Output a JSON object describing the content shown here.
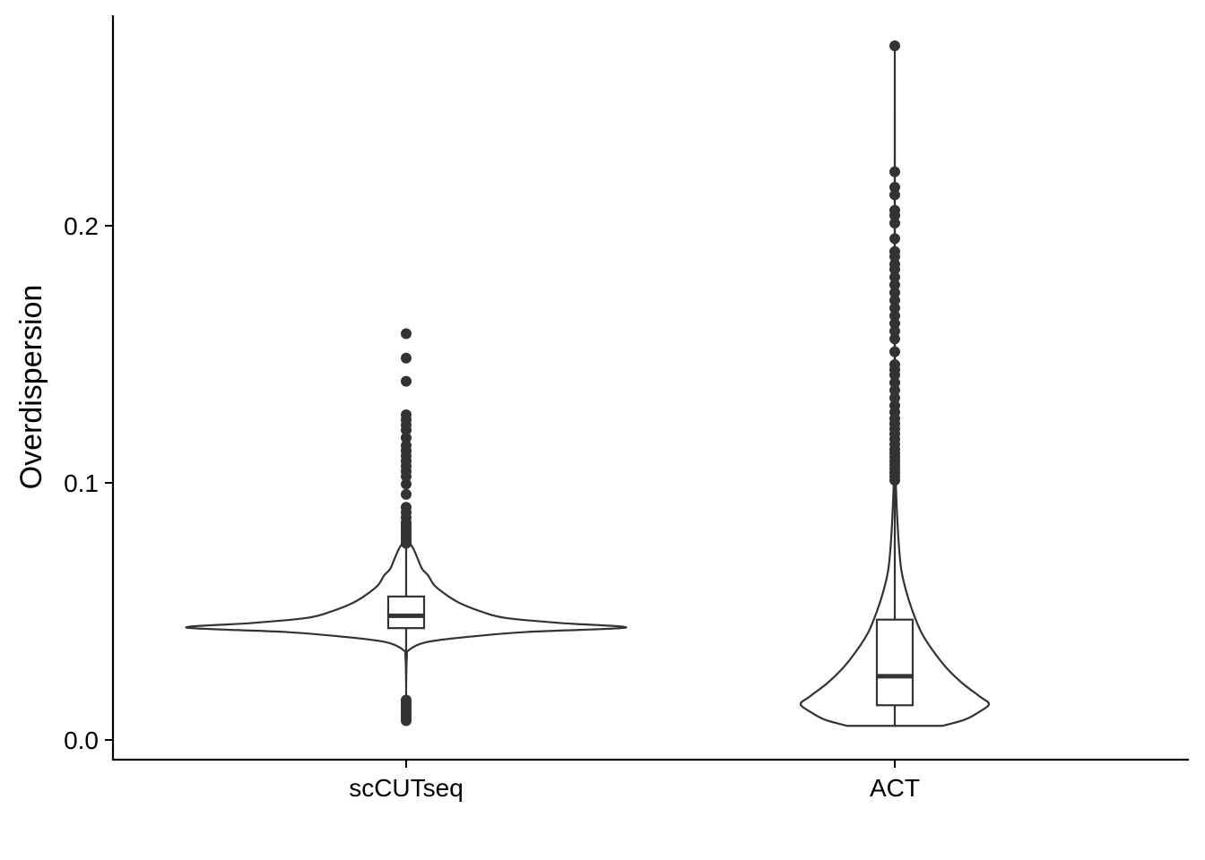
{
  "chart_data": {
    "type": "violin",
    "title": "",
    "xlabel": "",
    "ylabel": "Overdispersion",
    "ylim": [
      -0.0075,
      0.282
    ],
    "yticks": [
      0.0,
      0.1,
      0.2
    ],
    "ytick_labels": [
      "0.0",
      "0.1",
      "0.2"
    ],
    "grid": false,
    "legend": "none",
    "colors": {
      "stroke": "#333333",
      "fill": "#ffffff",
      "axis": "#000000"
    },
    "categories": [
      "scCUTseq",
      "ACT"
    ],
    "groups": [
      {
        "name": "scCUTseq",
        "box": {
          "q1": 0.0435,
          "median": 0.0483,
          "q3": 0.0558,
          "whisker_low": 0.033,
          "whisker_high": 0.0763
        },
        "violin": [
          [
            0.0075,
            0.0
          ],
          [
            0.02,
            0.0
          ],
          [
            0.032,
            0.003
          ],
          [
            0.035,
            0.013
          ],
          [
            0.038,
            0.09
          ],
          [
            0.04,
            0.27
          ],
          [
            0.042,
            0.55
          ],
          [
            0.0437,
            1.0
          ],
          [
            0.0455,
            0.7
          ],
          [
            0.0475,
            0.45
          ],
          [
            0.05,
            0.34
          ],
          [
            0.053,
            0.25
          ],
          [
            0.056,
            0.19
          ],
          [
            0.06,
            0.13
          ],
          [
            0.064,
            0.1
          ],
          [
            0.0665,
            0.073
          ],
          [
            0.07,
            0.055
          ],
          [
            0.074,
            0.035
          ],
          [
            0.078,
            0.008
          ],
          [
            0.08,
            0.0
          ]
        ],
        "outliers": [
          0.0075,
          0.0085,
          0.0095,
          0.0105,
          0.0115,
          0.0125,
          0.0135,
          0.0145,
          0.0155,
          0.0765,
          0.0775,
          0.0785,
          0.0795,
          0.0805,
          0.0815,
          0.0825,
          0.0835,
          0.0845,
          0.0865,
          0.0885,
          0.0905,
          0.0955,
          0.0995,
          0.1025,
          0.1045,
          0.1065,
          0.1085,
          0.1105,
          0.1125,
          0.1145,
          0.1175,
          0.1205,
          0.1225,
          0.1245,
          0.1265,
          0.1395,
          0.1485,
          0.158
        ]
      },
      {
        "name": "ACT",
        "box": {
          "q1": 0.0135,
          "median": 0.0248,
          "q3": 0.0468,
          "whisker_low": 0.0055,
          "whisker_high": 0.1
        },
        "violin": [
          [
            0.0055,
            0.51
          ],
          [
            0.008,
            0.75
          ],
          [
            0.011,
            0.9
          ],
          [
            0.014,
            1.0
          ],
          [
            0.017,
            0.9
          ],
          [
            0.022,
            0.72
          ],
          [
            0.028,
            0.55
          ],
          [
            0.035,
            0.4
          ],
          [
            0.042,
            0.28
          ],
          [
            0.05,
            0.19
          ],
          [
            0.058,
            0.12
          ],
          [
            0.066,
            0.07
          ],
          [
            0.075,
            0.045
          ],
          [
            0.085,
            0.028
          ],
          [
            0.095,
            0.016
          ],
          [
            0.105,
            0.008
          ],
          [
            0.12,
            0.004
          ],
          [
            0.15,
            0.002
          ],
          [
            0.2,
            0.001
          ],
          [
            0.27,
            0.0
          ]
        ],
        "outliers": [
          0.101,
          0.1025,
          0.104,
          0.1055,
          0.107,
          0.1085,
          0.11,
          0.1115,
          0.113,
          0.115,
          0.117,
          0.119,
          0.121,
          0.123,
          0.125,
          0.1275,
          0.13,
          0.133,
          0.136,
          0.139,
          0.142,
          0.144,
          0.146,
          0.151,
          0.156,
          0.159,
          0.162,
          0.165,
          0.168,
          0.171,
          0.174,
          0.177,
          0.18,
          0.183,
          0.185,
          0.188,
          0.19,
          0.195,
          0.201,
          0.204,
          0.206,
          0.212,
          0.215,
          0.221,
          0.27
        ]
      }
    ]
  }
}
